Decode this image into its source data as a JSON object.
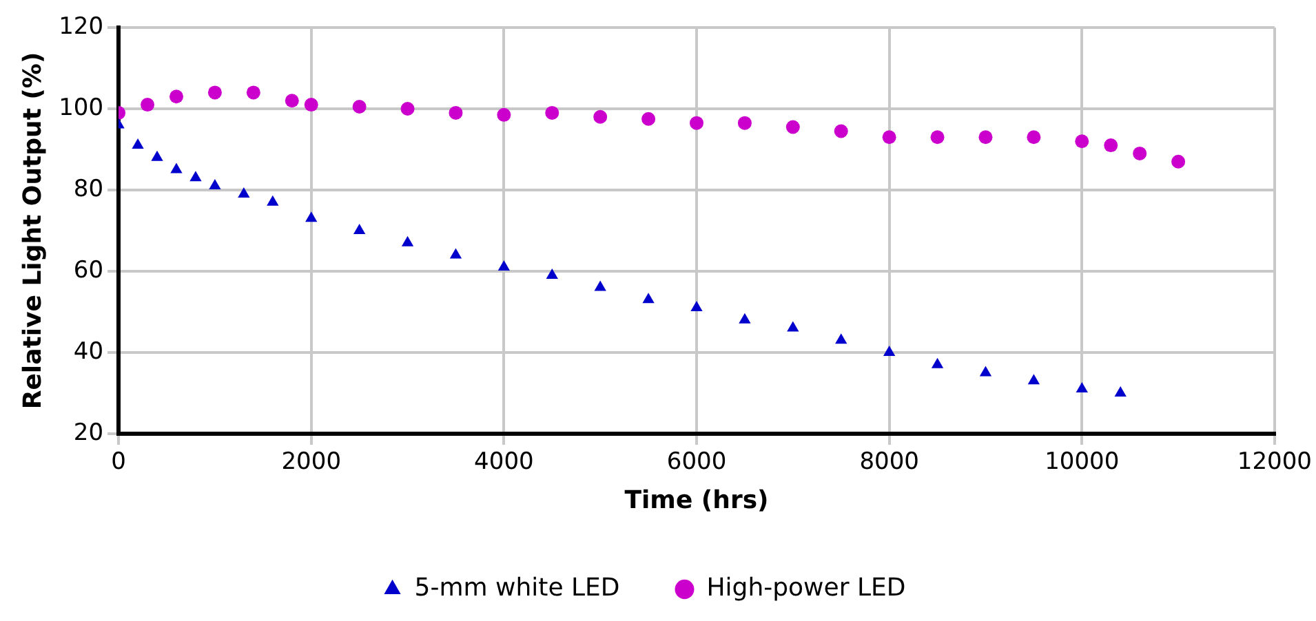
{
  "chart_data": {
    "type": "scatter",
    "xlabel": "Time (hrs)",
    "ylabel": "Relative Light Output (%)",
    "xlim": [
      0,
      12000
    ],
    "xticks": [
      0,
      2000,
      4000,
      6000,
      8000,
      10000,
      12000
    ],
    "ylim": [
      20,
      120
    ],
    "yticks": [
      20,
      40,
      60,
      80,
      100,
      120
    ],
    "grid": true,
    "legend": "bottom",
    "series": [
      {
        "name": "5-mm white LED",
        "color": "#0000cc",
        "marker": "triangle",
        "x": [
          0,
          200,
          400,
          600,
          800,
          1000,
          1300,
          1600,
          2000,
          2500,
          3000,
          3500,
          4000,
          4500,
          5000,
          5500,
          6000,
          6500,
          7000,
          7500,
          8000,
          8500,
          9000,
          9500,
          10000,
          10400
        ],
        "values": [
          96,
          91,
          88,
          85,
          83,
          81,
          79,
          77,
          73,
          70,
          67,
          64,
          61,
          59,
          56,
          53,
          51,
          48,
          46,
          43,
          40,
          37,
          35,
          33,
          31,
          30
        ]
      },
      {
        "name": "High-power LED",
        "color": "#cc00cc",
        "marker": "circle",
        "x": [
          0,
          300,
          600,
          1000,
          1400,
          1800,
          2000,
          2500,
          3000,
          3500,
          4000,
          4500,
          5000,
          5500,
          6000,
          6500,
          7000,
          7500,
          8000,
          8500,
          9000,
          9500,
          10000,
          10300,
          10600,
          11000
        ],
        "values": [
          99,
          101,
          103,
          104,
          104,
          102,
          101,
          100.5,
          100,
          99,
          98.5,
          99,
          98,
          97.5,
          96.5,
          96.5,
          95.5,
          94.5,
          93,
          93,
          93,
          93,
          92,
          91,
          89,
          87
        ]
      }
    ]
  }
}
